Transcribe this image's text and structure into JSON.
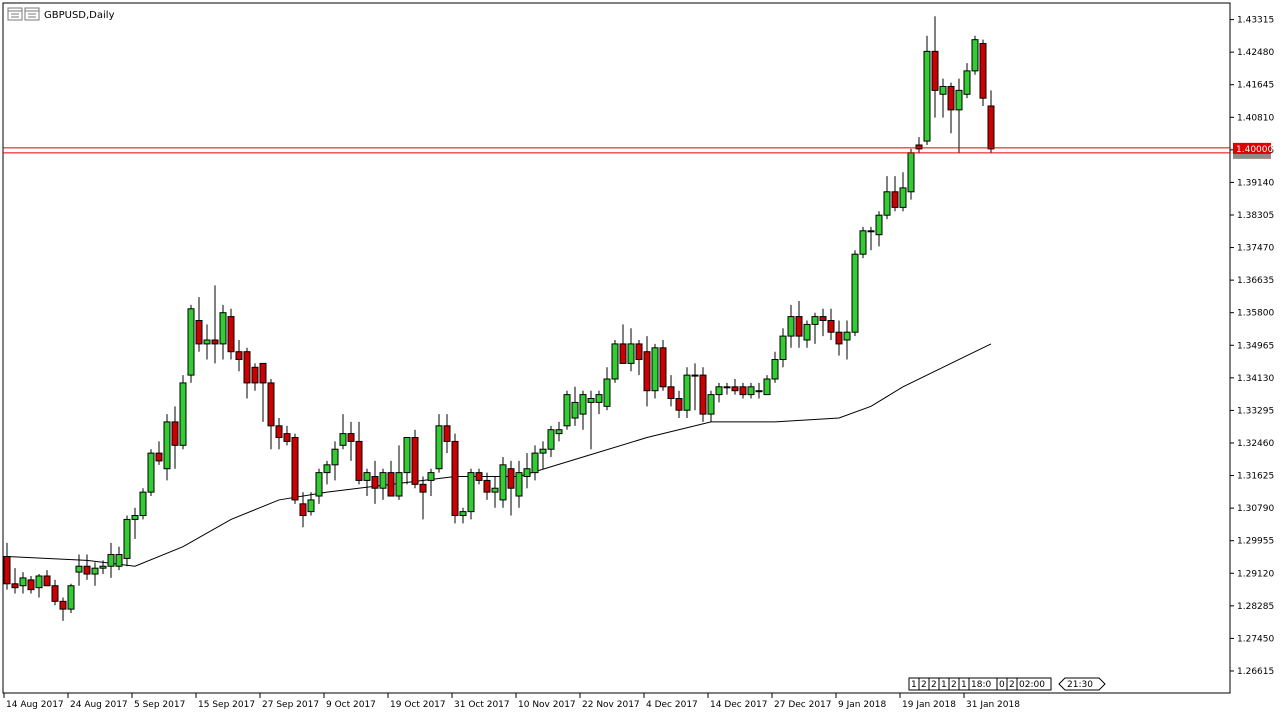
{
  "header": {
    "symbol_label": "GBPUSD,Daily",
    "chart_icon": "chart-window-icon"
  },
  "price_line": {
    "label": "1.40000",
    "value": 1.4,
    "color": "#e00000"
  },
  "indicator_strip": {
    "cells": [
      "1",
      "2",
      "2",
      "1",
      "2",
      "1",
      "18:0",
      "0",
      "2",
      "02:00"
    ],
    "tail": "21:30"
  },
  "colors": {
    "bull": "#33cc33",
    "bear": "#cc0000",
    "outline": "#000000",
    "ma_line": "#000000",
    "axis": "#000000",
    "grid_bg": "#ffffff"
  },
  "chart_data": {
    "type": "candlestick",
    "title": "GBPUSD,Daily",
    "ylim": [
      1.2605,
      1.4374
    ],
    "y_ticks": [
      "1.43315",
      "1.42480",
      "1.41645",
      "1.40810",
      "1.39975",
      "1.39140",
      "1.38305",
      "1.37470",
      "1.36635",
      "1.35800",
      "1.34965",
      "1.34130",
      "1.33295",
      "1.32460",
      "1.31625",
      "1.30790",
      "1.29955",
      "1.29120",
      "1.28285",
      "1.27450",
      "1.26615"
    ],
    "x_ticks": [
      {
        "label": "14 Aug 2017",
        "index": 0
      },
      {
        "label": "24 Aug 2017",
        "index": 8
      },
      {
        "label": "5 Sep 2017",
        "index": 16
      },
      {
        "label": "15 Sep 2017",
        "index": 24
      },
      {
        "label": "27 Sep 2017",
        "index": 32
      },
      {
        "label": "9 Oct 2017",
        "index": 40
      },
      {
        "label": "19 Oct 2017",
        "index": 48
      },
      {
        "label": "31 Oct 2017",
        "index": 56
      },
      {
        "label": "10 Nov 2017",
        "index": 64
      },
      {
        "label": "22 Nov 2017",
        "index": 72
      },
      {
        "label": "4 Dec 2017",
        "index": 80
      },
      {
        "label": "14 Dec 2017",
        "index": 88
      },
      {
        "label": "27 Dec 2017",
        "index": 96
      },
      {
        "label": "9 Jan 2018",
        "index": 104
      },
      {
        "label": "19 Jan 2018",
        "index": 112
      },
      {
        "label": "31 Jan 2018",
        "index": 120
      }
    ],
    "ohlc": [
      [
        1.2955,
        1.299,
        1.287,
        1.2885
      ],
      [
        1.2885,
        1.2925,
        1.286,
        1.2875
      ],
      [
        1.288,
        1.2915,
        1.286,
        1.29
      ],
      [
        1.2895,
        1.2905,
        1.286,
        1.287
      ],
      [
        1.2875,
        1.291,
        1.285,
        1.2905
      ],
      [
        1.2905,
        1.292,
        1.288,
        1.288
      ],
      [
        1.288,
        1.2895,
        1.283,
        1.284
      ],
      [
        1.284,
        1.285,
        1.279,
        1.282
      ],
      [
        1.282,
        1.2885,
        1.281,
        1.288
      ],
      [
        1.2915,
        1.296,
        1.288,
        1.293
      ],
      [
        1.293,
        1.296,
        1.2895,
        1.291
      ],
      [
        1.291,
        1.294,
        1.288,
        1.2925
      ],
      [
        1.2925,
        1.2945,
        1.291,
        1.293
      ],
      [
        1.293,
        1.299,
        1.29,
        1.296
      ],
      [
        1.293,
        1.298,
        1.292,
        1.296
      ],
      [
        1.295,
        1.306,
        1.293,
        1.305
      ],
      [
        1.305,
        1.308,
        1.3,
        1.306
      ],
      [
        1.306,
        1.313,
        1.305,
        1.312
      ],
      [
        1.312,
        1.323,
        1.311,
        1.322
      ],
      [
        1.322,
        1.325,
        1.319,
        1.32
      ],
      [
        1.318,
        1.332,
        1.315,
        1.33
      ],
      [
        1.33,
        1.334,
        1.318,
        1.324
      ],
      [
        1.324,
        1.342,
        1.323,
        1.34
      ],
      [
        1.342,
        1.36,
        1.34,
        1.359
      ],
      [
        1.356,
        1.362,
        1.348,
        1.35
      ],
      [
        1.35,
        1.355,
        1.346,
        1.351
      ],
      [
        1.351,
        1.365,
        1.345,
        1.35
      ],
      [
        1.35,
        1.36,
        1.346,
        1.358
      ],
      [
        1.357,
        1.359,
        1.346,
        1.348
      ],
      [
        1.348,
        1.351,
        1.343,
        1.346
      ],
      [
        1.348,
        1.349,
        1.336,
        1.34
      ],
      [
        1.344,
        1.345,
        1.338,
        1.34
      ],
      [
        1.345,
        1.345,
        1.33,
        1.34
      ],
      [
        1.34,
        1.341,
        1.323,
        1.329
      ],
      [
        1.329,
        1.331,
        1.323,
        1.326
      ],
      [
        1.327,
        1.329,
        1.324,
        1.325
      ],
      [
        1.326,
        1.327,
        1.309,
        1.31
      ],
      [
        1.309,
        1.312,
        1.303,
        1.306
      ],
      [
        1.307,
        1.312,
        1.306,
        1.31
      ],
      [
        1.311,
        1.318,
        1.309,
        1.317
      ],
      [
        1.317,
        1.32,
        1.314,
        1.319
      ],
      [
        1.319,
        1.325,
        1.315,
        1.323
      ],
      [
        1.324,
        1.332,
        1.323,
        1.327
      ],
      [
        1.327,
        1.33,
        1.32,
        1.325
      ],
      [
        1.325,
        1.33,
        1.314,
        1.315
      ],
      [
        1.315,
        1.318,
        1.311,
        1.317
      ],
      [
        1.316,
        1.32,
        1.309,
        1.313
      ],
      [
        1.313,
        1.318,
        1.31,
        1.317
      ],
      [
        1.317,
        1.32,
        1.311,
        1.311
      ],
      [
        1.311,
        1.324,
        1.31,
        1.317
      ],
      [
        1.317,
        1.326,
        1.314,
        1.326
      ],
      [
        1.326,
        1.328,
        1.313,
        1.314
      ],
      [
        1.314,
        1.316,
        1.305,
        1.312
      ],
      [
        1.315,
        1.318,
        1.311,
        1.317
      ],
      [
        1.318,
        1.332,
        1.317,
        1.329
      ],
      [
        1.329,
        1.332,
        1.322,
        1.325
      ],
      [
        1.325,
        1.327,
        1.304,
        1.306
      ],
      [
        1.306,
        1.308,
        1.304,
        1.307
      ],
      [
        1.307,
        1.318,
        1.305,
        1.317
      ],
      [
        1.317,
        1.318,
        1.314,
        1.315
      ],
      [
        1.315,
        1.317,
        1.31,
        1.312
      ],
      [
        1.312,
        1.316,
        1.308,
        1.313
      ],
      [
        1.31,
        1.321,
        1.308,
        1.319
      ],
      [
        1.318,
        1.32,
        1.306,
        1.313
      ],
      [
        1.311,
        1.32,
        1.308,
        1.317
      ],
      [
        1.316,
        1.322,
        1.313,
        1.318
      ],
      [
        1.317,
        1.324,
        1.315,
        1.322
      ],
      [
        1.322,
        1.325,
        1.318,
        1.323
      ],
      [
        1.323,
        1.329,
        1.321,
        1.328
      ],
      [
        1.327,
        1.33,
        1.325,
        1.328
      ],
      [
        1.329,
        1.338,
        1.328,
        1.337
      ],
      [
        1.331,
        1.339,
        1.329,
        1.335
      ],
      [
        1.332,
        1.338,
        1.328,
        1.337
      ],
      [
        1.335,
        1.338,
        1.323,
        1.336
      ],
      [
        1.335,
        1.338,
        1.332,
        1.337
      ],
      [
        1.334,
        1.344,
        1.333,
        1.341
      ],
      [
        1.341,
        1.351,
        1.34,
        1.35
      ],
      [
        1.35,
        1.355,
        1.346,
        1.345
      ],
      [
        1.345,
        1.354,
        1.343,
        1.35
      ],
      [
        1.35,
        1.351,
        1.342,
        1.346
      ],
      [
        1.348,
        1.352,
        1.334,
        1.338
      ],
      [
        1.338,
        1.35,
        1.336,
        1.349
      ],
      [
        1.349,
        1.351,
        1.338,
        1.339
      ],
      [
        1.339,
        1.342,
        1.334,
        1.336
      ],
      [
        1.336,
        1.338,
        1.331,
        1.333
      ],
      [
        1.333,
        1.344,
        1.331,
        1.342
      ],
      [
        1.342,
        1.345,
        1.333,
        1.342
      ],
      [
        1.342,
        1.344,
        1.33,
        1.332
      ],
      [
        1.332,
        1.338,
        1.33,
        1.337
      ],
      [
        1.337,
        1.34,
        1.335,
        1.339
      ],
      [
        1.339,
        1.34,
        1.337,
        1.339
      ],
      [
        1.339,
        1.341,
        1.337,
        1.338
      ],
      [
        1.339,
        1.34,
        1.336,
        1.337
      ],
      [
        1.337,
        1.34,
        1.336,
        1.339
      ],
      [
        1.338,
        1.34,
        1.336,
        1.338
      ],
      [
        1.337,
        1.342,
        1.337,
        1.341
      ],
      [
        1.341,
        1.348,
        1.34,
        1.346
      ],
      [
        1.346,
        1.354,
        1.344,
        1.352
      ],
      [
        1.352,
        1.36,
        1.349,
        1.357
      ],
      [
        1.357,
        1.361,
        1.349,
        1.352
      ],
      [
        1.351,
        1.356,
        1.349,
        1.355
      ],
      [
        1.355,
        1.358,
        1.35,
        1.357
      ],
      [
        1.357,
        1.359,
        1.352,
        1.356
      ],
      [
        1.356,
        1.359,
        1.351,
        1.353
      ],
      [
        1.353,
        1.356,
        1.347,
        1.35
      ],
      [
        1.351,
        1.356,
        1.346,
        1.353
      ],
      [
        1.353,
        1.374,
        1.352,
        1.373
      ],
      [
        1.373,
        1.38,
        1.372,
        1.379
      ],
      [
        1.379,
        1.38,
        1.374,
        1.379
      ],
      [
        1.378,
        1.384,
        1.375,
        1.383
      ],
      [
        1.383,
        1.393,
        1.382,
        1.389
      ],
      [
        1.389,
        1.393,
        1.384,
        1.385
      ],
      [
        1.385,
        1.394,
        1.384,
        1.39
      ],
      [
        1.389,
        1.4,
        1.387,
        1.399
      ],
      [
        1.401,
        1.403,
        1.399,
        1.4
      ],
      [
        1.402,
        1.429,
        1.401,
        1.425
      ],
      [
        1.425,
        1.434,
        1.408,
        1.415
      ],
      [
        1.414,
        1.418,
        1.408,
        1.416
      ],
      [
        1.416,
        1.417,
        1.404,
        1.41
      ],
      [
        1.41,
        1.418,
        1.399,
        1.415
      ],
      [
        1.414,
        1.422,
        1.413,
        1.42
      ],
      [
        1.42,
        1.429,
        1.419,
        1.428
      ],
      [
        1.427,
        1.428,
        1.411,
        1.413
      ],
      [
        1.411,
        1.415,
        1.399,
        1.4
      ]
    ],
    "moving_average": {
      "name": "",
      "values": [
        [
          0,
          1.2955
        ],
        [
          10,
          1.2945
        ],
        [
          16,
          1.293
        ],
        [
          22,
          1.298
        ],
        [
          28,
          1.305
        ],
        [
          34,
          1.31
        ],
        [
          40,
          1.312
        ],
        [
          48,
          1.314
        ],
        [
          56,
          1.316
        ],
        [
          64,
          1.316
        ],
        [
          72,
          1.321
        ],
        [
          80,
          1.326
        ],
        [
          88,
          1.33
        ],
        [
          96,
          1.33
        ],
        [
          104,
          1.331
        ],
        [
          108,
          1.334
        ],
        [
          112,
          1.339
        ],
        [
          116,
          1.343
        ],
        [
          120,
          1.347
        ],
        [
          123,
          1.35
        ]
      ]
    }
  }
}
